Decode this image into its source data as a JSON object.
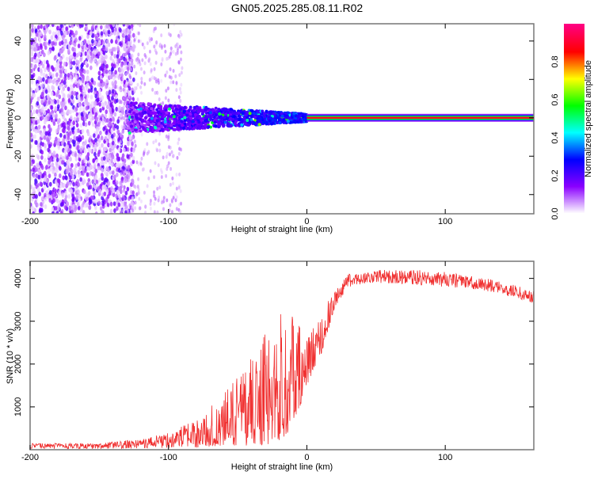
{
  "title": "GN05.2025.285.08.11.R02",
  "chart_data": [
    {
      "type": "heatmap",
      "xlabel": "Height of straight line (km)",
      "ylabel": "Frequency (Hz)",
      "xlim": [
        -200,
        164
      ],
      "ylim": [
        -50,
        49
      ],
      "xticks": [
        -200,
        -100,
        0,
        100
      ],
      "yticks": [
        -40,
        -20,
        0,
        20,
        40
      ],
      "colorbar": {
        "label": "Normalized spectral amplitude",
        "range": [
          0,
          1
        ],
        "ticks": [
          "0.0",
          "0.2",
          "0.4",
          "0.6",
          "0.8"
        ],
        "colors": [
          "#ffffff",
          "#8a00ff",
          "#0000ff",
          "#00ffff",
          "#00ff00",
          "#ffff00",
          "#ff0000",
          "#ff0080"
        ]
      },
      "features": {
        "scatter_region_km": [
          -200,
          -130
        ],
        "scatter_amplitude": 0.1,
        "cluster_region_km": [
          -130,
          0
        ],
        "cluster_freq_halfwidth_hz": [
          8,
          2
        ],
        "cluster_amplitude": 0.4,
        "steady_line_km": [
          0,
          164
        ],
        "steady_line_freq_hz": 0,
        "steady_line_amplitude": 0.9
      }
    },
    {
      "type": "line",
      "xlabel": "Height of straight line (km)",
      "ylabel": "SNR (10 * v/v)",
      "xlim": [
        -200,
        164
      ],
      "ylim": [
        0,
        4400
      ],
      "xticks": [
        -200,
        -100,
        0,
        100
      ],
      "yticks": [
        1000,
        2000,
        3000,
        4000
      ],
      "color": "#f03030",
      "envelope": {
        "x": [
          -200,
          -150,
          -120,
          -100,
          -80,
          -60,
          -50,
          -40,
          -30,
          -20,
          -10,
          0,
          10,
          20,
          30,
          50,
          80,
          100,
          130,
          150,
          164
        ],
        "low": [
          20,
          20,
          30,
          40,
          50,
          100,
          100,
          100,
          100,
          200,
          500,
          1500,
          2200,
          3300,
          3800,
          3900,
          3850,
          3800,
          3700,
          3550,
          3400
        ],
        "high": [
          150,
          150,
          250,
          400,
          700,
          1300,
          1700,
          2300,
          2700,
          3300,
          3200,
          2600,
          3200,
          3700,
          4100,
          4200,
          4200,
          4150,
          4000,
          3850,
          3700
        ]
      }
    }
  ]
}
